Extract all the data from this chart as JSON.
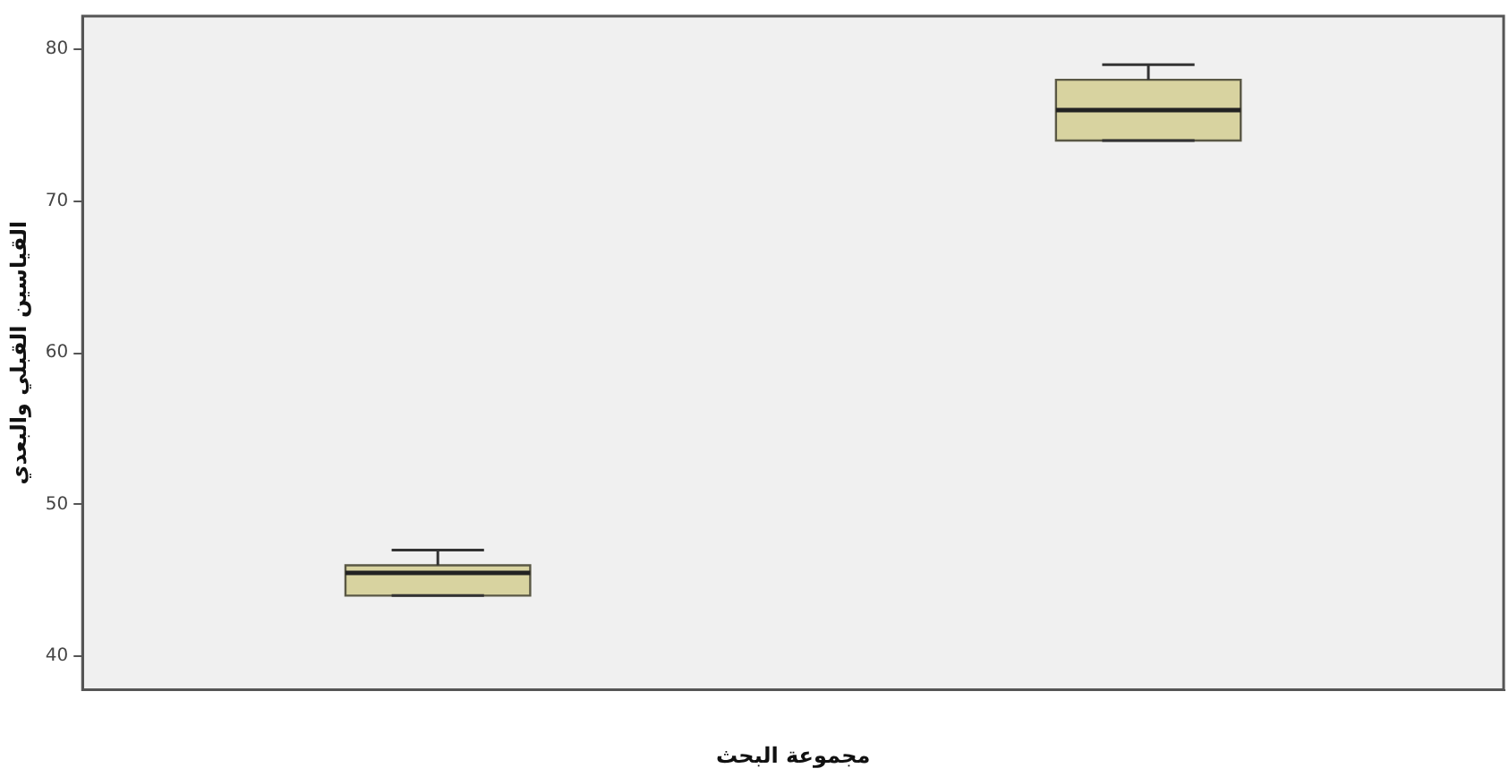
{
  "chart_data": {
    "type": "box",
    "xlabel": "مجموعة البحث",
    "ylabel": "القياسين القبلي والبعدي",
    "categories": [
      null,
      null
    ],
    "boxes": [
      {
        "low": 44,
        "q1": 44,
        "median": 45.5,
        "q3": 46,
        "high": 47
      },
      {
        "low": 74,
        "q1": 74,
        "median": 76,
        "q3": 78,
        "high": 79
      }
    ],
    "color": "#d8d3a0",
    "ylim": [
      37.8,
      82.2
    ],
    "yticks": [
      40,
      50,
      60,
      70,
      80
    ],
    "grid": false,
    "legend": false
  }
}
